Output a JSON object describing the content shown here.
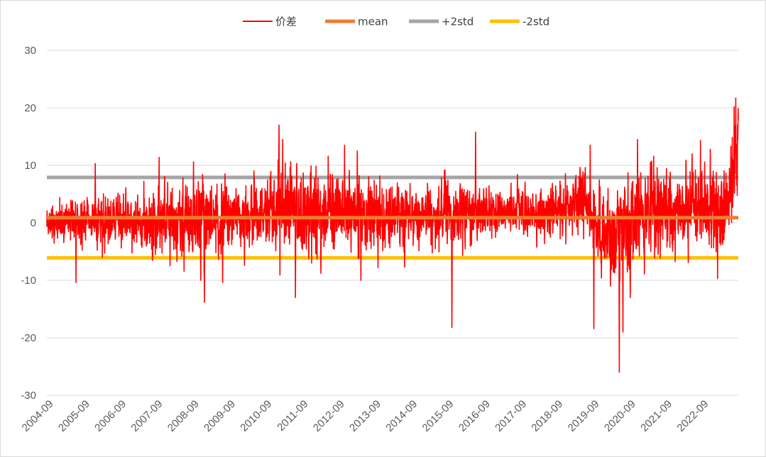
{
  "chart_data": {
    "type": "line",
    "title": "",
    "xlabel": "",
    "ylabel": "",
    "ylim": [
      -30,
      30
    ],
    "y_ticks": [
      "30",
      "20",
      "10",
      "0",
      "-10",
      "-20",
      "-30"
    ],
    "x_ticks": [
      "2004-09",
      "2005-09",
      "2006-09",
      "2007-09",
      "2008-09",
      "2009-09",
      "2010-09",
      "2011-09",
      "2012-09",
      "2013-09",
      "2014-09",
      "2015-09",
      "2016-09",
      "2017-09",
      "2018-09",
      "2019-09",
      "2020-09",
      "2021-09",
      "2022-09"
    ],
    "x_range": [
      2004.67,
      2023.67
    ],
    "grid": true,
    "legend_position": "top",
    "series": [
      {
        "name": "价差",
        "color": "#ff0000",
        "style": "noisy-spread",
        "volatility": [
          [
            2004.67,
            1.8
          ],
          [
            2005.5,
            1.8
          ],
          [
            2006.6,
            2.2
          ],
          [
            2007.6,
            3.0
          ],
          [
            2008.7,
            3.6
          ],
          [
            2009.7,
            2.6
          ],
          [
            2010.6,
            3.0
          ],
          [
            2011.2,
            4.6
          ],
          [
            2012.5,
            3.6
          ],
          [
            2013.7,
            3.0
          ],
          [
            2014.7,
            2.3
          ],
          [
            2015.7,
            2.8
          ],
          [
            2016.7,
            2.4
          ],
          [
            2017.7,
            1.8
          ],
          [
            2018.7,
            2.2
          ],
          [
            2019.5,
            2.8
          ],
          [
            2020.4,
            4.8
          ],
          [
            2021.0,
            4.2
          ],
          [
            2022.0,
            3.4
          ],
          [
            2023.2,
            4.0
          ],
          [
            2023.67,
            4.2
          ]
        ],
        "baseline": [
          [
            2004.67,
            0.2
          ],
          [
            2008.5,
            0.6
          ],
          [
            2011.5,
            1.6
          ],
          [
            2012.9,
            2.5
          ],
          [
            2014.0,
            1.0
          ],
          [
            2016.7,
            2.2
          ],
          [
            2017.5,
            1.8
          ],
          [
            2019.0,
            2.2
          ],
          [
            2019.4,
            3.8
          ],
          [
            2020.1,
            -3.0
          ],
          [
            2020.6,
            -1.0
          ],
          [
            2021.3,
            2.4
          ],
          [
            2022.5,
            2.6
          ],
          [
            2023.4,
            4.0
          ],
          [
            2023.67,
            13.0
          ]
        ],
        "peaks": [
          [
            2005.47,
            9.3
          ],
          [
            2005.47,
            -10.4
          ],
          [
            2006.0,
            10.3
          ],
          [
            2008.7,
            10.6
          ],
          [
            2008.9,
            -10.0
          ],
          [
            2009.0,
            -13.8
          ],
          [
            2009.5,
            -10.4
          ],
          [
            2010.1,
            -7.4
          ],
          [
            2011.05,
            17.0
          ],
          [
            2011.15,
            14.5
          ],
          [
            2011.5,
            -13.0
          ],
          [
            2012.2,
            -8.8
          ],
          [
            2012.85,
            13.5
          ],
          [
            2013.2,
            12.5
          ],
          [
            2013.3,
            -10.0
          ],
          [
            2014.5,
            -7.7
          ],
          [
            2015.8,
            -18.2
          ],
          [
            2016.45,
            15.8
          ],
          [
            2017.6,
            8.4
          ],
          [
            2019.4,
            8.9
          ],
          [
            2019.6,
            13.5
          ],
          [
            2019.7,
            -18.4
          ],
          [
            2020.4,
            -26.0
          ],
          [
            2020.5,
            -19.0
          ],
          [
            2020.7,
            -13.0
          ],
          [
            2020.9,
            14.5
          ],
          [
            2021.8,
            8.8
          ],
          [
            2022.4,
            12.0
          ],
          [
            2022.9,
            12.8
          ],
          [
            2023.1,
            -9.7
          ],
          [
            2023.6,
            21.7
          ],
          [
            2023.65,
            17.0
          ]
        ]
      },
      {
        "name": "mean",
        "color": "#ed7d31",
        "value": 0.9
      },
      {
        "name": "+2std",
        "color": "#a5a5a5",
        "value": 7.9
      },
      {
        "name": "-2std",
        "color": "#ffc000",
        "value": -6.1
      }
    ]
  }
}
